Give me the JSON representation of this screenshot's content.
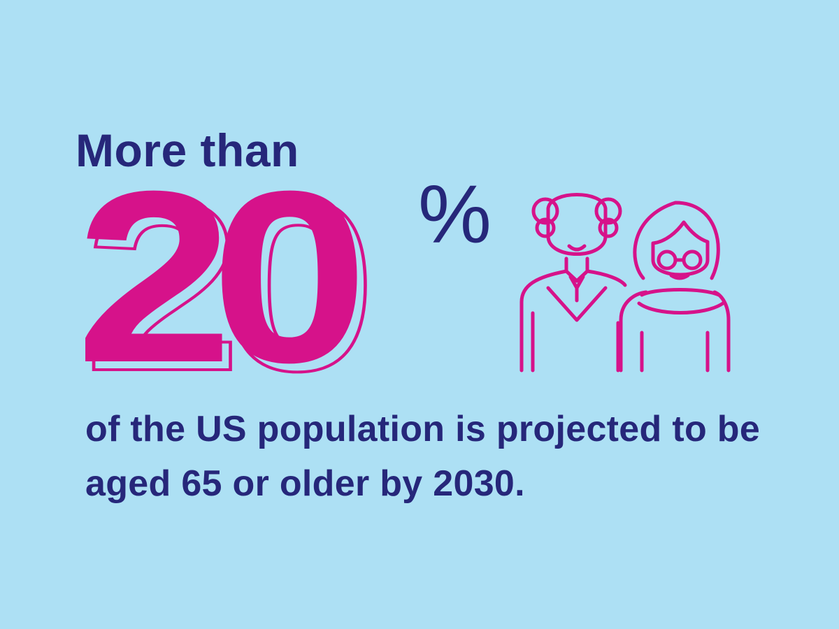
{
  "headline": {
    "lead": "More than",
    "big_number": "20",
    "unit": "%"
  },
  "caption": "of the US population is projected to be aged 65 or older by 2030.",
  "icons": {
    "people": "elderly-couple-icon",
    "man": "elderly-man-icon",
    "woman": "elderly-woman-icon"
  },
  "colors": {
    "background": "#ade0f4",
    "accent": "#d6128a",
    "text": "#26277a"
  }
}
